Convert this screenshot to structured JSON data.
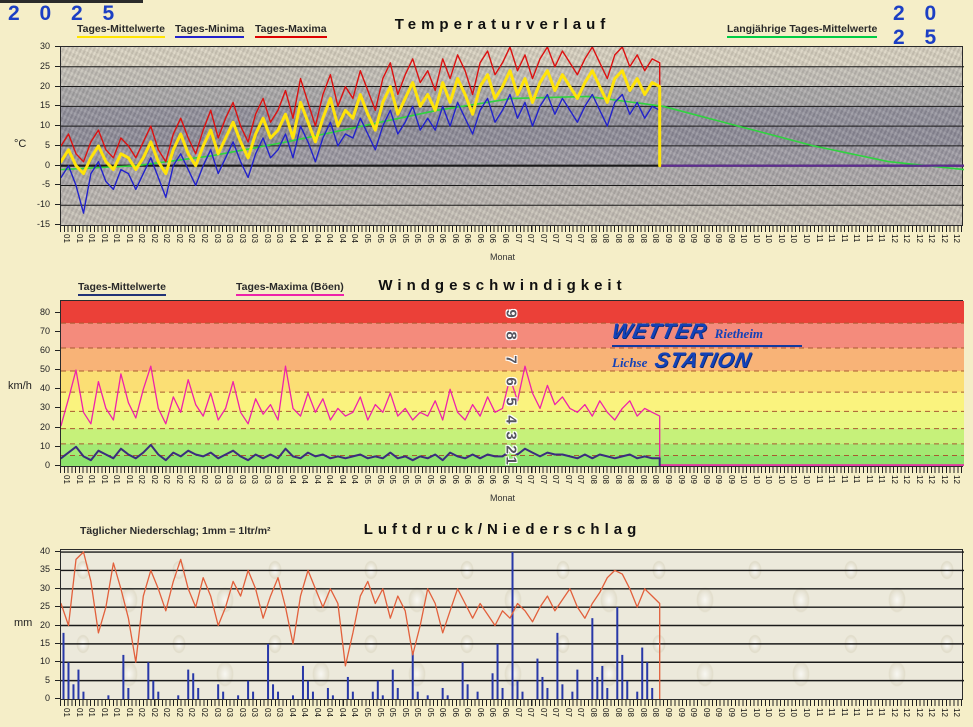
{
  "page": {
    "year_left": "2 0 2 5",
    "year_right": "2 0 2 5"
  },
  "ui": {
    "logo": {
      "word1": "WETTER",
      "place1": "Rietheim",
      "place2": "Lichse",
      "word2": "STATION",
      "color": "#1342B8"
    }
  },
  "chart_data": [
    {
      "id": "temperature",
      "type": "line",
      "title": "Temperaturverlauf",
      "ylabel": "°C",
      "xlabel": "Monat",
      "ylim": [
        -15,
        30
      ],
      "yticks": [
        30,
        25,
        20,
        15,
        10,
        5,
        0,
        -5,
        -10,
        -15
      ],
      "months": [
        "01",
        "02",
        "03",
        "04",
        "05",
        "06",
        "07",
        "08",
        "09",
        "10",
        "11",
        "12"
      ],
      "labels_per_month": 6,
      "data_end_fraction": 0.663,
      "series": [
        {
          "name": "Tages-Maxima",
          "color": "#DD1111",
          "width": 1.4,
          "values": [
            5,
            8,
            3,
            1,
            6,
            9,
            4,
            2,
            7,
            5,
            2,
            6,
            10,
            4,
            1,
            8,
            12,
            7,
            3,
            9,
            14,
            7,
            12,
            16,
            10,
            6,
            13,
            17,
            11,
            14,
            19,
            12,
            22,
            16,
            10,
            18,
            23,
            15,
            20,
            17,
            24,
            19,
            14,
            22,
            26,
            18,
            23,
            27,
            21,
            24,
            19,
            27,
            22,
            28,
            24,
            18,
            26,
            29,
            23,
            26,
            30,
            24,
            28,
            22,
            27,
            30,
            25,
            29,
            26,
            23,
            27,
            30,
            26,
            22,
            28,
            30,
            25,
            28,
            24,
            27,
            26
          ]
        },
        {
          "name": "Tages-Minima",
          "color": "#2222CC",
          "width": 1.4,
          "values": [
            -3,
            0,
            -5,
            -12,
            -2,
            1,
            -4,
            -6,
            -1,
            -2,
            -6,
            -2,
            2,
            -3,
            -8,
            0,
            3,
            -1,
            -5,
            0,
            4,
            -2,
            2,
            6,
            1,
            -3,
            3,
            7,
            2,
            4,
            8,
            2,
            10,
            6,
            1,
            7,
            11,
            5,
            8,
            7,
            12,
            8,
            4,
            10,
            14,
            8,
            11,
            15,
            9,
            12,
            9,
            15,
            10,
            16,
            12,
            8,
            14,
            17,
            11,
            14,
            18,
            12,
            16,
            10,
            15,
            18,
            13,
            17,
            14,
            11,
            15,
            18,
            14,
            10,
            16,
            18,
            13,
            16,
            12,
            15,
            14
          ]
        },
        {
          "name": "Tages-Mittelwerte",
          "color": "#FFE40A",
          "width": 3,
          "values": [
            1,
            4,
            0,
            -2,
            2,
            5,
            1,
            -1,
            3,
            2,
            -1,
            2,
            6,
            1,
            -2,
            4,
            8,
            3,
            0,
            5,
            9,
            3,
            7,
            11,
            6,
            2,
            8,
            12,
            7,
            9,
            13,
            7,
            16,
            11,
            6,
            12,
            17,
            10,
            14,
            12,
            18,
            13,
            9,
            16,
            20,
            13,
            17,
            21,
            15,
            18,
            14,
            21,
            16,
            22,
            18,
            13,
            20,
            23,
            17,
            20,
            24,
            18,
            22,
            16,
            21,
            24,
            19,
            23,
            20,
            17,
            21,
            24,
            20,
            16,
            22,
            24,
            19,
            22,
            18,
            21,
            20
          ]
        },
        {
          "name": "Langjährige Tages-Mittelwerte",
          "color": "#2FD33F",
          "width": 1.6,
          "full_year": true,
          "values": [
            -1,
            0,
            2.5,
            6,
            10,
            14,
            17,
            17.5,
            15,
            10,
            5,
            1,
            -1
          ]
        }
      ],
      "flatline": {
        "color": "#5E2C91",
        "value": 0,
        "width": 2.2
      }
    },
    {
      "id": "wind",
      "type": "line",
      "title": "Windgeschwindigkeit",
      "ylabel": "km/h",
      "xlabel": "Monat",
      "ylim": [
        0,
        86
      ],
      "yticks": [
        80,
        70,
        60,
        50,
        40,
        30,
        20,
        10,
        0
      ],
      "months": [
        "01",
        "02",
        "03",
        "04",
        "05",
        "06",
        "07",
        "08",
        "09",
        "10",
        "11",
        "12"
      ],
      "labels_per_month": 6,
      "data_end_fraction": 0.663,
      "beaufort_bands": [
        {
          "bft": 1,
          "from": 0,
          "to": 5.5,
          "color": "#8DE36D"
        },
        {
          "bft": 2,
          "from": 5.5,
          "to": 11.5,
          "color": "#A4E973"
        },
        {
          "bft": 3,
          "from": 11.5,
          "to": 19.5,
          "color": "#C6F17A"
        },
        {
          "bft": 4,
          "from": 19.5,
          "to": 28.5,
          "color": "#E9F881"
        },
        {
          "bft": 5,
          "from": 28.5,
          "to": 38.5,
          "color": "#FAF37E"
        },
        {
          "bft": 6,
          "from": 38.5,
          "to": 49.5,
          "color": "#FBDF74"
        },
        {
          "bft": 7,
          "from": 49.5,
          "to": 61.5,
          "color": "#F8B377"
        },
        {
          "bft": 8,
          "from": 61.5,
          "to": 74.5,
          "color": "#F48B7C"
        },
        {
          "bft": 9,
          "from": 74.5,
          "to": 86,
          "color": "#EB4038"
        }
      ],
      "beaufort_labels": [
        {
          "n": "9",
          "kmh": 79
        },
        {
          "n": "8",
          "kmh": 68
        },
        {
          "n": "7",
          "kmh": 55.5
        },
        {
          "n": "6",
          "kmh": 44
        },
        {
          "n": "5",
          "kmh": 33.5
        },
        {
          "n": "4",
          "kmh": 24
        },
        {
          "n": "3",
          "kmh": 15.5
        },
        {
          "n": "2",
          "kmh": 8.5
        },
        {
          "n": "1",
          "kmh": 2.8
        }
      ],
      "series": [
        {
          "name": "Tages-Maxima (Böen)",
          "color": "#EE22AA",
          "width": 1.3,
          "values": [
            21,
            35,
            50,
            28,
            22,
            44,
            30,
            24,
            48,
            33,
            25,
            40,
            52,
            30,
            22,
            36,
            28,
            45,
            32,
            26,
            38,
            24,
            30,
            44,
            28,
            22,
            35,
            27,
            32,
            24,
            52,
            30,
            26,
            38,
            28,
            35,
            24,
            30,
            26,
            28,
            36,
            24,
            32,
            28,
            38,
            26,
            30,
            24,
            28,
            26,
            34,
            24,
            40,
            28,
            24,
            32,
            26,
            36,
            28,
            30,
            46,
            34,
            52,
            38,
            30,
            42,
            32,
            36,
            30,
            28,
            32,
            26,
            34,
            28,
            24,
            30,
            34,
            26,
            30,
            28,
            26
          ]
        },
        {
          "name": "Tages-Mittelwerte",
          "color": "#3A2D7E",
          "width": 2,
          "values": [
            4,
            7,
            10,
            5,
            3,
            8,
            6,
            4,
            9,
            6,
            4,
            7,
            11,
            6,
            3,
            7,
            5,
            8,
            6,
            5,
            7,
            4,
            6,
            8,
            5,
            3,
            6,
            4,
            6,
            4,
            9,
            5,
            4,
            7,
            5,
            6,
            4,
            5,
            4,
            5,
            6,
            4,
            5,
            4,
            7,
            4,
            5,
            3,
            5,
            4,
            6,
            3,
            7,
            5,
            4,
            6,
            4,
            6,
            5,
            5,
            8,
            6,
            9,
            7,
            5,
            7,
            6,
            6,
            5,
            4,
            6,
            4,
            6,
            5,
            4,
            5,
            6,
            4,
            5,
            4,
            4
          ]
        }
      ],
      "flatline": {
        "color": "#EE22AA",
        "value": 0.5,
        "width": 1.6
      },
      "band_divider_color": "#A85A30"
    },
    {
      "id": "pressure_precipitation",
      "type": "line+bar",
      "title": "Luftdruck/Niederschlag",
      "note": "Täglicher Niederschlag; 1mm = 1ltr/m²",
      "ylabel": "mm",
      "ylim": [
        0,
        40.55
      ],
      "yticks": [
        40,
        35,
        30,
        25,
        20,
        15,
        10,
        5,
        0
      ],
      "months": [
        "01",
        "02",
        "03",
        "04",
        "05",
        "06",
        "07",
        "08",
        "09",
        "10",
        "11",
        "12"
      ],
      "labels_per_month": 6,
      "data_end_fraction": 0.663,
      "grid_color": "#1a1a1a",
      "line_series": {
        "name": "Luftdruck",
        "color": "#E2603C",
        "width": 1.3,
        "values": [
          26,
          20,
          38,
          40,
          32,
          18,
          25,
          37,
          30,
          22,
          10,
          28,
          35,
          30,
          24,
          32,
          38,
          30,
          25,
          33,
          28,
          20,
          25,
          32,
          28,
          35,
          30,
          22,
          28,
          33,
          25,
          15,
          28,
          35,
          30,
          25,
          30,
          26,
          9,
          18,
          28,
          32,
          26,
          30,
          22,
          28,
          24,
          12,
          20,
          30,
          26,
          18,
          24,
          30,
          26,
          22,
          26,
          23,
          20,
          24,
          22,
          26,
          24,
          21,
          25,
          28,
          24,
          27,
          30,
          25,
          22,
          26,
          29,
          33,
          35,
          34,
          30,
          25,
          30,
          28,
          26
        ]
      },
      "bar_series": {
        "name": "Niederschlag",
        "color": "#2838A8",
        "values": [
          18,
          10,
          4,
          8,
          2,
          0,
          0,
          0,
          0,
          1,
          0,
          0,
          12,
          3,
          0,
          0,
          0,
          10,
          5,
          2,
          0,
          0,
          0,
          1,
          0,
          8,
          7,
          3,
          0,
          0,
          0,
          4,
          2,
          0,
          0,
          1,
          0,
          5,
          2,
          0,
          0,
          15,
          4,
          2,
          0,
          0,
          1,
          0,
          9,
          5,
          2,
          0,
          0,
          3,
          1,
          0,
          0,
          6,
          2,
          0,
          0,
          0,
          2,
          5,
          1,
          0,
          8,
          3,
          0,
          0,
          13,
          2,
          0,
          1,
          0,
          0,
          3,
          1,
          0,
          0,
          10,
          4,
          0,
          2,
          0,
          0,
          7,
          15,
          3,
          0,
          40,
          5,
          2,
          0,
          0,
          11,
          6,
          3,
          0,
          18,
          4,
          0,
          2,
          8,
          0,
          0,
          22,
          6,
          9,
          3,
          0,
          25,
          12,
          5,
          0,
          2,
          14,
          10,
          3,
          0
        ]
      }
    }
  ]
}
